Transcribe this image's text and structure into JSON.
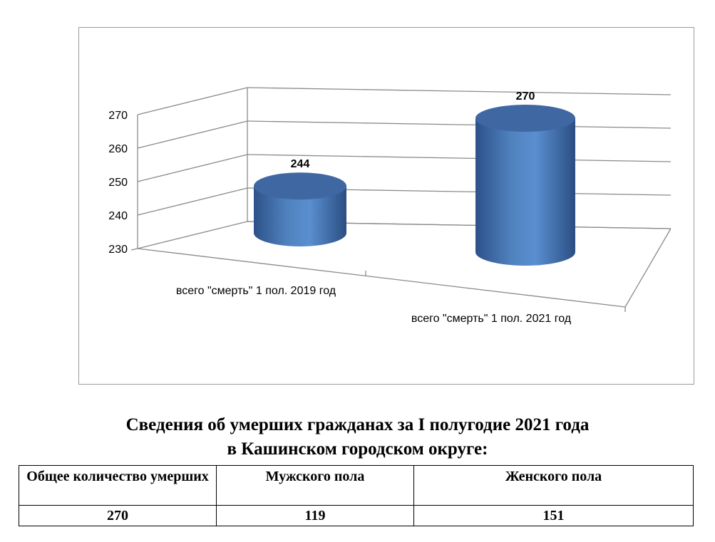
{
  "chart_data": {
    "type": "bar",
    "style": "3d-cylinder",
    "categories": [
      "всего \"смерть\" 1 пол. 2019 год",
      "всего \"смерть\" 1 пол. 2021 год"
    ],
    "values": [
      244,
      270
    ],
    "data_labels": [
      "244",
      "270"
    ],
    "yticks": [
      "230",
      "240",
      "250",
      "260",
      "270"
    ],
    "ylim": [
      230,
      270
    ],
    "grid": true,
    "legend": false,
    "bar_color": "#4f81bd",
    "bar_top_color": "#3f68a3"
  },
  "heading": {
    "line1": "Сведения об умерших гражданах за I полугодие 2021 года",
    "line2": "в Кашинском городском округе:"
  },
  "table": {
    "headers": [
      "Общее количество умерших",
      "Мужского пола",
      "Женского пола"
    ],
    "values": [
      "270",
      "119",
      "151"
    ]
  }
}
